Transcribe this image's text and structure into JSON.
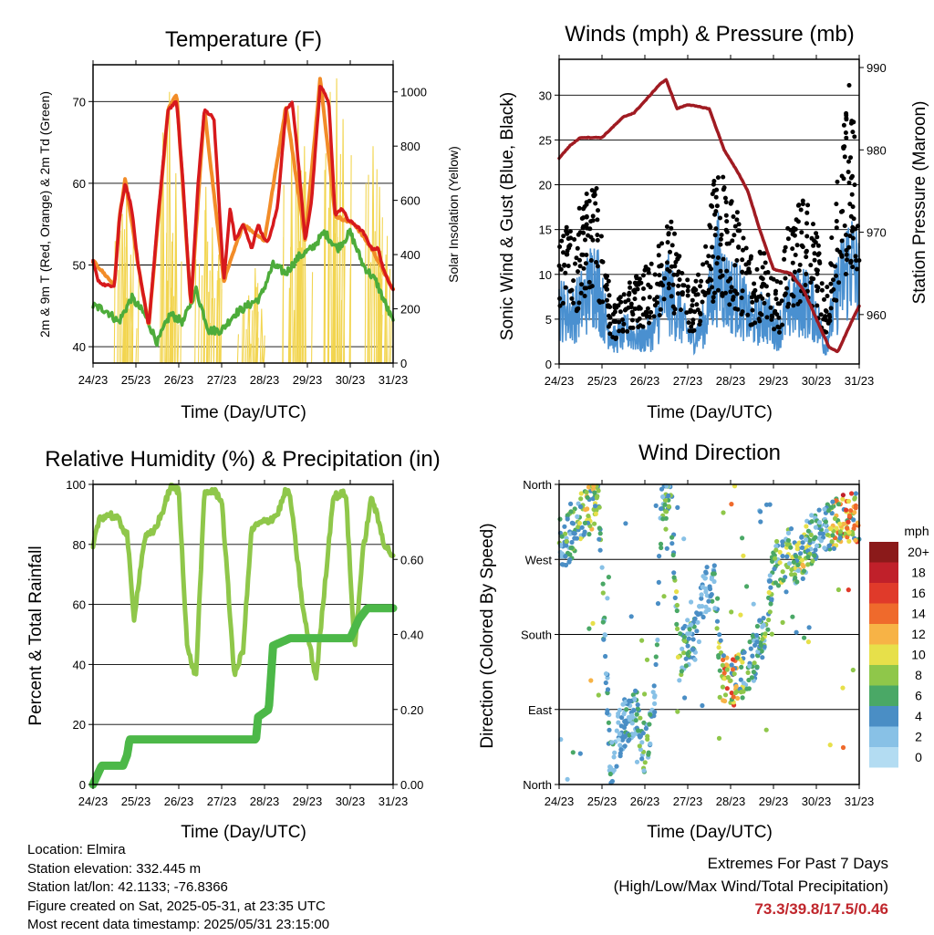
{
  "charts": {
    "temperature": {
      "title": "Temperature (F)",
      "xlabel": "Time (Day/UTC)",
      "ylabel_left": "2m & 9m T (Red, Orange) & 2m Td (Green)",
      "ylabel_right": "Solar Insolation (Yellow)",
      "left_ticks": [
        "40",
        "50",
        "60",
        "70"
      ],
      "right_ticks": [
        "0",
        "200",
        "400",
        "600",
        "800",
        "1000"
      ]
    },
    "winds": {
      "title": "Winds (mph) & Pressure (mb)",
      "xlabel": "Time (Day/UTC)",
      "ylabel_left": "Sonic Wind & Gust (Blue, Black)",
      "ylabel_right": "Station Pressure (Maroon)",
      "left_ticks": [
        "0",
        "5",
        "10",
        "15",
        "20",
        "25",
        "30"
      ],
      "right_ticks": [
        "960",
        "970",
        "980",
        "990"
      ]
    },
    "humidity": {
      "title": "Relative Humidity (%) & Precipitation (in)",
      "xlabel": "Time (Day/UTC)",
      "ylabel_left": "Percent & Total Rainfall",
      "left_ticks": [
        "0",
        "20",
        "40",
        "60",
        "80",
        "100"
      ],
      "right_ticks": [
        "0.00",
        "0.20",
        "0.40",
        "0.60"
      ]
    },
    "direction": {
      "title": "Wind Direction",
      "xlabel": "Time (Day/UTC)",
      "ylabel_left": "Direction (Colored By Speed)",
      "left_ticks": [
        "North",
        "East",
        "South",
        "West",
        "North"
      ],
      "legend_title": "mph",
      "legend_labels": [
        "20+",
        "18",
        "16",
        "14",
        "12",
        "10",
        "8",
        "6",
        "4",
        "2",
        "0"
      ]
    }
  },
  "x_ticks": [
    "24/23",
    "25/23",
    "26/23",
    "27/23",
    "28/23",
    "29/23",
    "30/23",
    "31/23"
  ],
  "chart_data": [
    {
      "type": "line",
      "title": "Temperature (F)",
      "categories": [
        "24/23",
        "25/23",
        "26/23",
        "27/23",
        "28/23",
        "29/23",
        "30/23",
        "31/23"
      ],
      "ylim": [
        38,
        74.5
      ],
      "y2lim": [
        0,
        1100
      ],
      "series": [
        {
          "name": "2m T",
          "color": "#d7191c",
          "x": [
            0,
            0.12,
            0.3,
            0.5,
            0.62,
            0.75,
            0.9,
            1.05,
            1.3,
            1.5,
            1.75,
            1.95,
            2.1,
            2.28,
            2.45,
            2.6,
            2.82,
            3.05,
            3.2,
            3.32,
            3.5,
            3.7,
            3.85,
            4.0,
            4.1,
            4.3,
            4.5,
            4.65,
            4.8,
            4.95,
            5.1,
            5.3,
            5.5,
            5.65,
            5.8,
            5.95,
            6.1,
            6.3,
            6.5,
            6.65,
            6.8,
            7.0
          ],
          "y": [
            50.5,
            48,
            47.5,
            47.5,
            56,
            60,
            57,
            50,
            42.5,
            55,
            69,
            70,
            60,
            45,
            60,
            69,
            68,
            48,
            57,
            53,
            55,
            52,
            55,
            53,
            53,
            57,
            69,
            70,
            62,
            53,
            58,
            72,
            70,
            56,
            57,
            55.5,
            55,
            54,
            52,
            52,
            49,
            47
          ]
        },
        {
          "name": "9m T",
          "color": "#f28c28",
          "x": [
            0,
            0.5,
            0.62,
            0.75,
            1.05,
            1.3,
            1.75,
            1.95,
            2.28,
            2.6,
            3.05,
            3.5,
            4.0,
            4.5,
            4.95,
            5.3,
            5.65,
            6.1,
            6.5,
            7.0
          ],
          "y": [
            50.5,
            47.5,
            56,
            60.5,
            50,
            42.5,
            69,
            71,
            45,
            69,
            48,
            55,
            53,
            69.5,
            53,
            73,
            56,
            55,
            52,
            47
          ]
        },
        {
          "name": "2m Td",
          "color": "#4dac3a",
          "x": [
            0,
            0.3,
            0.6,
            0.9,
            1.2,
            1.5,
            1.8,
            2.1,
            2.4,
            2.7,
            3.0,
            3.3,
            3.6,
            3.9,
            4.2,
            4.5,
            4.8,
            5.1,
            5.4,
            5.7,
            6.0,
            6.3,
            6.6,
            7.0
          ],
          "y": [
            45,
            44.5,
            43,
            46,
            44,
            40.5,
            44,
            43,
            47,
            42,
            42,
            44,
            45,
            46,
            50,
            49,
            51,
            52,
            54,
            52,
            54,
            50,
            48,
            43
          ]
        },
        {
          "name": "Solar Insolation",
          "axis": "right",
          "color": "#f2d550",
          "x": [
            0.65,
            0.75,
            0.85,
            1.6,
            1.75,
            1.9,
            2.6,
            2.75,
            2.9,
            3.6,
            3.75,
            3.9,
            4.6,
            4.75,
            4.9,
            5.5,
            5.65,
            5.8,
            6.5,
            6.65,
            6.8
          ],
          "y": [
            550,
            650,
            400,
            850,
            1000,
            700,
            650,
            500,
            400,
            250,
            350,
            200,
            800,
            950,
            800,
            1000,
            1050,
            900,
            800,
            650,
            400
          ]
        }
      ]
    },
    {
      "type": "line",
      "title": "Winds (mph) & Pressure (mb)",
      "categories": [
        "24/23",
        "25/23",
        "26/23",
        "27/23",
        "28/23",
        "29/23",
        "30/23",
        "31/23"
      ],
      "ylim": [
        0,
        34
      ],
      "y2lim": [
        954,
        991
      ],
      "series": [
        {
          "name": "Sonic Wind",
          "color": "#4a90d0",
          "x": [
            0,
            0.3,
            0.6,
            0.85,
            1.1,
            1.3,
            1.6,
            1.9,
            2.2,
            2.5,
            2.8,
            3.1,
            3.4,
            3.7,
            3.9,
            4.2,
            4.5,
            4.8,
            5.1,
            5.4,
            5.7,
            6.0,
            6.2,
            6.5,
            6.8,
            7.0
          ],
          "y": [
            7,
            6,
            8,
            11,
            5,
            3,
            4,
            3,
            4,
            9,
            6,
            3,
            5,
            12,
            9,
            8,
            5,
            6,
            4,
            7,
            8,
            6,
            2,
            9,
            13,
            10
          ]
        },
        {
          "name": "Gust",
          "color": "#000000",
          "x": [
            0,
            0.3,
            0.6,
            0.85,
            1.1,
            1.3,
            1.6,
            1.9,
            2.2,
            2.5,
            2.8,
            3.1,
            3.4,
            3.7,
            3.9,
            4.2,
            4.5,
            4.8,
            5.1,
            5.4,
            5.7,
            6.0,
            6.2,
            6.5,
            6.8,
            7.0
          ],
          "y": [
            13,
            12,
            15,
            16,
            8,
            5,
            7,
            8,
            9,
            14,
            10,
            6,
            10,
            18,
            15,
            13,
            9,
            10,
            7,
            13,
            15,
            12,
            5,
            17,
            25,
            20
          ]
        },
        {
          "name": "Station Pressure",
          "axis": "right",
          "color": "#a01b22",
          "x": [
            0,
            0.25,
            0.5,
            1.0,
            1.5,
            1.75,
            2.1,
            2.35,
            2.5,
            2.75,
            3.0,
            3.5,
            3.85,
            4.2,
            4.4,
            4.7,
            5.0,
            5.4,
            5.7,
            6.0,
            6.3,
            6.5,
            6.9,
            7.0
          ],
          "y": [
            979,
            980.5,
            981.5,
            981.5,
            984,
            984.5,
            986.5,
            988,
            988.5,
            985,
            985.5,
            985,
            980,
            977,
            975,
            970,
            965.5,
            965,
            963,
            959.5,
            956,
            955.5,
            960,
            961
          ]
        }
      ]
    },
    {
      "type": "line",
      "title": "Relative Humidity (%) & Precipitation (in)",
      "categories": [
        "24/23",
        "25/23",
        "26/23",
        "27/23",
        "28/23",
        "29/23",
        "30/23",
        "31/23"
      ],
      "ylim": [
        0,
        100
      ],
      "y2lim": [
        0,
        0.8
      ],
      "series": [
        {
          "name": "Relative Humidity",
          "color": "#8fc74a",
          "x": [
            0,
            0.15,
            0.4,
            0.6,
            0.8,
            0.95,
            1.2,
            1.4,
            1.6,
            1.8,
            2.0,
            2.2,
            2.4,
            2.6,
            2.8,
            3.0,
            3.3,
            3.5,
            3.7,
            3.9,
            4.1,
            4.3,
            4.5,
            4.6,
            4.9,
            5.2,
            5.4,
            5.6,
            5.9,
            6.1,
            6.3,
            6.5,
            6.8,
            7.0
          ],
          "y": [
            79,
            89,
            90,
            88,
            83,
            55,
            82,
            84,
            90,
            99,
            98,
            45,
            36,
            97,
            98,
            95,
            36,
            45,
            85,
            87,
            88,
            90,
            98,
            96,
            58,
            35,
            65,
            96,
            97,
            45,
            78,
            96,
            80,
            76
          ]
        },
        {
          "name": "Total Rainfall",
          "axis": "right",
          "color": "#4cb848",
          "x": [
            0,
            0.12,
            0.2,
            0.7,
            0.8,
            0.85,
            1.0,
            2.0,
            3.0,
            3.8,
            3.85,
            4.1,
            4.2,
            4.4,
            4.6,
            5.0,
            5.4,
            5.8,
            6.0,
            6.2,
            6.4,
            7.0
          ],
          "y": [
            0,
            0.03,
            0.05,
            0.05,
            0.08,
            0.12,
            0.12,
            0.12,
            0.12,
            0.12,
            0.18,
            0.2,
            0.37,
            0.38,
            0.39,
            0.39,
            0.39,
            0.39,
            0.39,
            0.44,
            0.47,
            0.47
          ]
        }
      ]
    },
    {
      "type": "scatter",
      "title": "Wind Direction",
      "categories": [
        "24/23",
        "25/23",
        "26/23",
        "27/23",
        "28/23",
        "29/23",
        "30/23",
        "31/23"
      ],
      "ylim": [
        0,
        360
      ],
      "legend": "right",
      "series": [
        {
          "name": "Wind Direction",
          "x": [
            0.1,
            0.3,
            0.5,
            0.7,
            0.9,
            1.2,
            1.4,
            1.6,
            1.8,
            2.0,
            2.2,
            2.4,
            2.6,
            2.8,
            3.0,
            3.2,
            3.4,
            3.6,
            3.8,
            4.0,
            4.2,
            4.4,
            4.6,
            4.8,
            5.0,
            5.2,
            5.4,
            5.6,
            5.8,
            6.0,
            6.2,
            6.4,
            6.6,
            6.8,
            7.0
          ],
          "y": [
            290,
            300,
            320,
            330,
            350,
            20,
            60,
            80,
            90,
            40,
            80,
            340,
            350,
            150,
            170,
            180,
            230,
            250,
            130,
            120,
            130,
            140,
            160,
            190,
            260,
            270,
            280,
            260,
            290,
            300,
            310,
            310,
            320,
            320,
            320
          ],
          "speeds": [
            6,
            5,
            8,
            10,
            7,
            4,
            3,
            4,
            5,
            6,
            4,
            6,
            7,
            7,
            6,
            4,
            3,
            4,
            10,
            13,
            9,
            6,
            5,
            7,
            6,
            8,
            7,
            9,
            8,
            6,
            5,
            10,
            14,
            13,
            12
          ]
        }
      ]
    }
  ],
  "info": {
    "location": "Location: Elmira",
    "elevation": "Station elevation: 332.445 m",
    "latlon": "Station lat/lon: 42.1133; -76.8366",
    "created": "Figure created on Sat, 2025-05-31, at 23:35 UTC",
    "timestamp": "Most recent data timestamp: 2025/05/31 23:15:00"
  },
  "extremes": {
    "line1": "Extremes For Past 7 Days",
    "line2": "(High/Low/Max Wind/Total Precipitation)",
    "values": "73.3/39.8/17.5/0.46"
  },
  "colors": {
    "temp_red": "#d7191c",
    "temp_orange": "#f28c28",
    "dewpoint_green": "#4dac3a",
    "solar_yellow": "#f2d550",
    "wind_blue": "#4a90d0",
    "gust_black": "#000000",
    "pressure_maroon": "#a01b22",
    "rh_lightgreen": "#8fc74a",
    "rain_green": "#4cb848",
    "extremes_red": "#c0262c",
    "speed_scale": [
      "#b3dcf2",
      "#88c1e6",
      "#4a8ec5",
      "#4aa866",
      "#8fc74a",
      "#e7e04a",
      "#f7b346",
      "#ef6a2c",
      "#e03a2a",
      "#c0202a",
      "#8b1a1a"
    ]
  }
}
